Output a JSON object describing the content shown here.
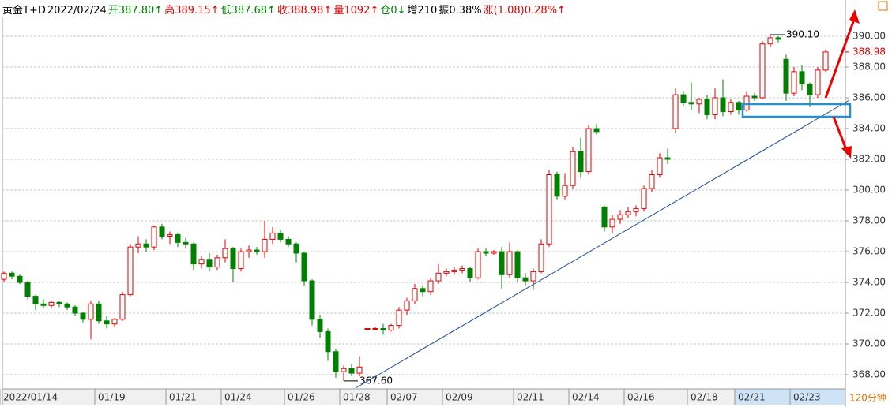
{
  "chart_data": {
    "type": "candlestick",
    "header": [
      {
        "text": "黄金T+D",
        "color": "#000000"
      },
      {
        "text": "2022/02/24",
        "color": "#000000"
      },
      {
        "text": "开387.80↑",
        "color": "#008000"
      },
      {
        "text": "高389.15↑",
        "color": "#e00000"
      },
      {
        "text": "低387.68↑",
        "color": "#008000"
      },
      {
        "text": "收388.98↑",
        "color": "#e00000"
      },
      {
        "text": "量1092↑",
        "color": "#e00000"
      },
      {
        "text": "仓0↓",
        "color": "#008000"
      },
      {
        "text": "增210",
        "color": "#000000"
      },
      {
        "text": "振0.38%",
        "color": "#000000"
      },
      {
        "text": "涨(1.08)0.28%↑",
        "color": "#e00000"
      }
    ],
    "period": "120分钟",
    "up_color": "#e00000",
    "down_color": "#008000",
    "ylim": [
      367.13,
      391.23
    ],
    "yticks": [
      {
        "value": 368,
        "label": "368.00"
      },
      {
        "value": 370,
        "label": "370.00"
      },
      {
        "value": 372,
        "label": "372.00"
      },
      {
        "value": 374,
        "label": "374.00"
      },
      {
        "value": 376,
        "label": "376.00"
      },
      {
        "value": 378,
        "label": "378.00"
      },
      {
        "value": 380,
        "label": "380.00"
      },
      {
        "value": 382,
        "label": "382.00"
      },
      {
        "value": 384,
        "label": "384.00"
      },
      {
        "value": 386,
        "label": "386.00"
      },
      {
        "value": 388,
        "label": "388.00"
      },
      {
        "value": 390,
        "label": "390.00"
      }
    ],
    "xlim": [
      -0.2,
      106.5
    ],
    "xticks": [
      {
        "value": 0,
        "label": "2022/01/14"
      },
      {
        "value": 12,
        "label": "01/19"
      },
      {
        "value": 21,
        "label": "01/21"
      },
      {
        "value": 28,
        "label": "01/24"
      },
      {
        "value": 36,
        "label": "01/26"
      },
      {
        "value": 43,
        "label": "01/28"
      },
      {
        "value": 49,
        "label": "02/07"
      },
      {
        "value": 56,
        "label": "02/09"
      },
      {
        "value": 65,
        "label": "02/11"
      },
      {
        "value": 72,
        "label": "02/14"
      },
      {
        "value": 79,
        "label": "02/16"
      },
      {
        "value": 87,
        "label": "02/18"
      },
      {
        "value": 93,
        "label": "02/21"
      },
      {
        "value": 100,
        "label": "02/23"
      }
    ],
    "grid": true,
    "last": {
      "value": 388.98,
      "label": "388.98"
    },
    "annotations": [
      {
        "x": 97,
        "value": 390.1,
        "label": "390.10"
      },
      {
        "x": 43,
        "value": 367.6,
        "label": "367.60"
      }
    ],
    "ohlc": [
      [
        374.2,
        374.7,
        374.0,
        374.6
      ],
      [
        374.6,
        374.7,
        374.2,
        374.4
      ],
      [
        374.4,
        374.5,
        373.9,
        374.0
      ],
      [
        374.0,
        374.1,
        372.9,
        373.1
      ],
      [
        373.1,
        373.2,
        372.2,
        372.6
      ],
      [
        372.6,
        372.9,
        372.3,
        372.5
      ],
      [
        372.5,
        372.8,
        372.3,
        372.7
      ],
      [
        372.7,
        372.8,
        372.4,
        372.6
      ],
      [
        372.6,
        372.7,
        372.2,
        372.4
      ],
      [
        372.4,
        372.5,
        371.8,
        372.0
      ],
      [
        372.0,
        372.1,
        371.4,
        371.6
      ],
      [
        371.6,
        372.8,
        370.3,
        372.6
      ],
      [
        372.6,
        372.8,
        371.3,
        371.5
      ],
      [
        371.5,
        371.8,
        371.0,
        371.3
      ],
      [
        371.3,
        371.7,
        371.1,
        371.6
      ],
      [
        371.6,
        373.4,
        371.5,
        373.2
      ],
      [
        373.2,
        376.5,
        373.1,
        376.3
      ],
      [
        376.3,
        377.0,
        375.9,
        376.5
      ],
      [
        376.5,
        376.8,
        376.0,
        376.3
      ],
      [
        376.3,
        377.7,
        376.1,
        377.6
      ],
      [
        377.6,
        377.8,
        376.8,
        377.0
      ],
      [
        377.0,
        377.3,
        376.5,
        377.1
      ],
      [
        377.1,
        377.2,
        376.3,
        376.6
      ],
      [
        376.6,
        376.9,
        376.2,
        376.5
      ],
      [
        376.5,
        376.6,
        374.8,
        375.2
      ],
      [
        375.2,
        375.7,
        374.9,
        375.5
      ],
      [
        375.5,
        375.9,
        374.7,
        375.0
      ],
      [
        375.0,
        375.8,
        374.8,
        375.6
      ],
      [
        375.6,
        376.8,
        375.3,
        376.2
      ],
      [
        376.2,
        376.3,
        374.0,
        374.9
      ],
      [
        374.9,
        376.2,
        374.7,
        376.0
      ],
      [
        376.0,
        376.4,
        375.6,
        376.1
      ],
      [
        376.1,
        376.3,
        375.8,
        376.0
      ],
      [
        376.0,
        378.0,
        375.6,
        376.8
      ],
      [
        376.8,
        377.6,
        376.5,
        377.2
      ],
      [
        377.2,
        377.4,
        376.6,
        376.8
      ],
      [
        376.8,
        377.0,
        376.3,
        376.5
      ],
      [
        376.5,
        376.6,
        375.3,
        375.9
      ],
      [
        375.9,
        376.0,
        373.8,
        374.1
      ],
      [
        374.1,
        374.2,
        371.2,
        371.6
      ],
      [
        371.6,
        371.9,
        370.4,
        370.8
      ],
      [
        370.8,
        371.0,
        368.9,
        369.5
      ],
      [
        369.5,
        369.7,
        367.8,
        368.2
      ],
      [
        368.2,
        368.6,
        367.6,
        368.4
      ],
      [
        368.4,
        368.7,
        367.9,
        368.1
      ],
      [
        368.1,
        369.2,
        367.9,
        368.5
      ],
      [
        371.0,
        371.0,
        371.0,
        371.0
      ],
      [
        371.0,
        371.1,
        370.9,
        371.0
      ],
      [
        371.0,
        371.3,
        370.6,
        370.9
      ],
      [
        370.9,
        371.3,
        370.8,
        371.2
      ],
      [
        371.2,
        372.4,
        371.0,
        372.2
      ],
      [
        372.2,
        373.0,
        371.9,
        372.8
      ],
      [
        372.8,
        373.9,
        372.6,
        373.6
      ],
      [
        373.6,
        373.8,
        373.1,
        373.4
      ],
      [
        373.4,
        374.3,
        373.2,
        374.1
      ],
      [
        374.1,
        375.2,
        373.9,
        374.6
      ],
      [
        374.6,
        374.9,
        374.4,
        374.7
      ],
      [
        374.7,
        375.0,
        374.5,
        374.8
      ],
      [
        374.8,
        375.1,
        374.6,
        374.9
      ],
      [
        374.9,
        375.0,
        374.0,
        374.3
      ],
      [
        374.3,
        376.2,
        374.2,
        376.0
      ],
      [
        376.0,
        376.2,
        375.7,
        375.9
      ],
      [
        375.9,
        376.1,
        375.8,
        376.0
      ],
      [
        376.0,
        376.3,
        373.6,
        374.5
      ],
      [
        374.5,
        376.6,
        374.3,
        376.0
      ],
      [
        376.0,
        376.1,
        374.0,
        374.3
      ],
      [
        374.3,
        374.6,
        373.8,
        374.1
      ],
      [
        374.1,
        374.9,
        373.5,
        374.7
      ],
      [
        374.7,
        376.8,
        374.6,
        376.5
      ],
      [
        376.5,
        381.3,
        376.3,
        381.0
      ],
      [
        381.0,
        381.2,
        379.4,
        379.6
      ],
      [
        379.6,
        381.1,
        379.4,
        380.3
      ],
      [
        380.3,
        382.8,
        380.1,
        382.5
      ],
      [
        382.5,
        383.4,
        380.8,
        381.2
      ],
      [
        381.2,
        384.2,
        381.0,
        384.0
      ],
      [
        384.0,
        384.3,
        383.6,
        383.8
      ],
      [
        378.9,
        379.0,
        377.3,
        377.6
      ],
      [
        377.6,
        378.4,
        377.2,
        378.1
      ],
      [
        378.1,
        378.7,
        377.8,
        378.4
      ],
      [
        378.4,
        378.9,
        378.2,
        378.6
      ],
      [
        378.6,
        379.0,
        378.3,
        378.8
      ],
      [
        378.8,
        380.3,
        378.6,
        380.1
      ],
      [
        380.1,
        381.3,
        379.9,
        381.0
      ],
      [
        381.0,
        382.4,
        380.8,
        382.1
      ],
      [
        382.1,
        382.7,
        381.7,
        382.0
      ],
      [
        384.0,
        386.6,
        383.7,
        386.2
      ],
      [
        386.2,
        386.4,
        385.5,
        385.7
      ],
      [
        385.7,
        387.0,
        385.2,
        385.6
      ],
      [
        385.6,
        386.0,
        385.0,
        385.9
      ],
      [
        385.9,
        386.2,
        384.6,
        384.9
      ],
      [
        384.9,
        386.6,
        384.6,
        386.0
      ],
      [
        386.0,
        387.2,
        384.8,
        385.1
      ],
      [
        385.1,
        385.9,
        384.9,
        385.7
      ],
      [
        385.7,
        385.8,
        384.9,
        385.2
      ],
      [
        385.2,
        386.4,
        385.1,
        386.1
      ],
      [
        386.1,
        386.3,
        385.8,
        386.0
      ],
      [
        386.0,
        389.7,
        385.9,
        389.5
      ],
      [
        389.5,
        390.1,
        389.3,
        389.9
      ],
      [
        389.9,
        390.0,
        389.6,
        389.8
      ],
      [
        388.5,
        388.8,
        385.8,
        386.3
      ],
      [
        386.3,
        388.0,
        386.1,
        387.7
      ],
      [
        387.7,
        388.1,
        386.5,
        386.9
      ],
      [
        386.9,
        387.0,
        385.4,
        386.2
      ],
      [
        386.2,
        388.0,
        386.0,
        387.8
      ],
      [
        387.8,
        389.15,
        387.68,
        388.98
      ]
    ]
  }
}
